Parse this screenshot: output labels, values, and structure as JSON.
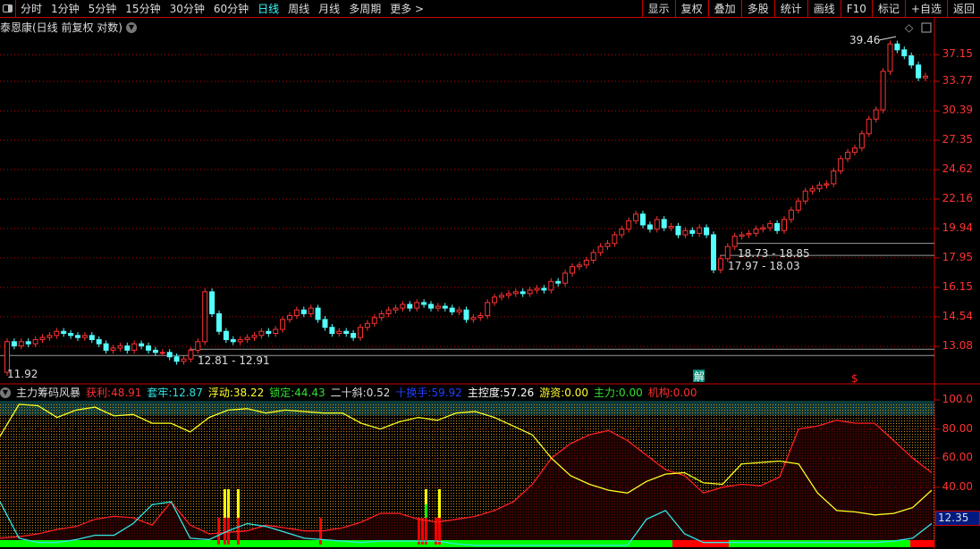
{
  "toolbar": {
    "periods": [
      "分时",
      "1分钟",
      "5分钟",
      "15分钟",
      "30分钟",
      "60分钟",
      "日线",
      "周线",
      "月线",
      "多周期",
      "更多 >"
    ],
    "active": "日线",
    "right_buttons": [
      "显示",
      "复权",
      "叠加",
      "多股",
      "统计",
      "画线",
      "F10",
      "标记",
      "+自选",
      "返回"
    ]
  },
  "main_title": "泰恩康(日线 前复权 对数)",
  "price_axis": [
    "37.15",
    "33.77",
    "30.39",
    "27.35",
    "24.62",
    "22.16",
    "19.94",
    "17.95",
    "16.15",
    "14.54",
    "13.08"
  ],
  "annotations": {
    "high": "39.46",
    "low": "11.92",
    "range1": "12.81 - 12.91",
    "range2": "18.73 - 18.85",
    "range3": "17.97 - 18.03",
    "jie": "解",
    "dollar": "$"
  },
  "indicator": {
    "name": "主力筹码风暴",
    "fields": [
      {
        "label": "获利:",
        "value": "48.91",
        "color": "#ff3030"
      },
      {
        "label": "套牢:",
        "value": "12.87",
        "color": "#30e0e0"
      },
      {
        "label": "浮动:",
        "value": "38.22",
        "color": "#ffff30"
      },
      {
        "label": "锁定:",
        "value": "44.43",
        "color": "#30e030"
      },
      {
        "label": "二十斜:",
        "value": "0.52",
        "color": "#dddddd"
      },
      {
        "label": "十换手:",
        "value": "59.92",
        "color": "#2040ff"
      },
      {
        "label": "主控度:",
        "value": "57.26",
        "color": "#ffffff"
      },
      {
        "label": "游资:",
        "value": "0.00",
        "color": "#ffff30"
      },
      {
        "label": "主力:",
        "value": "0.00",
        "color": "#30e030"
      },
      {
        "label": "机构:",
        "value": "0.00",
        "color": "#ff3030"
      }
    ],
    "axis": [
      "100.0",
      "80.00",
      "60.00",
      "40.00"
    ],
    "current": "12.35"
  },
  "chart_data": {
    "type": "candlestick",
    "scale": "log",
    "first_open": 11.92,
    "closes": [
      13.3,
      13.1,
      13.3,
      13.2,
      13.4,
      13.5,
      13.6,
      13.8,
      13.7,
      13.6,
      13.5,
      13.6,
      13.4,
      13.2,
      12.9,
      13.0,
      13.1,
      12.9,
      13.2,
      13.1,
      12.9,
      12.8,
      12.8,
      12.6,
      12.4,
      12.5,
      12.9,
      13.3,
      15.9,
      14.7,
      13.8,
      13.4,
      13.3,
      13.4,
      13.5,
      13.6,
      13.8,
      13.7,
      13.9,
      14.4,
      14.6,
      14.9,
      14.7,
      15.0,
      14.4,
      14.0,
      13.7,
      13.8,
      13.7,
      13.5,
      14.0,
      14.2,
      14.5,
      14.7,
      14.9,
      15.0,
      15.2,
      15.0,
      15.3,
      15.2,
      15.0,
      15.1,
      15.0,
      14.8,
      14.9,
      14.4,
      14.5,
      14.6,
      15.3,
      15.6,
      15.7,
      15.8,
      15.9,
      15.8,
      16.0,
      16.1,
      16.0,
      16.5,
      16.4,
      17.0,
      17.4,
      17.5,
      17.8,
      18.3,
      18.7,
      18.9,
      19.5,
      19.9,
      20.5,
      21.0,
      20.2,
      19.9,
      20.6,
      20.0,
      20.1,
      19.5,
      19.8,
      19.6,
      20.0,
      19.5,
      17.2,
      17.9,
      18.7,
      19.4,
      19.5,
      19.6,
      19.9,
      20.0,
      20.3,
      19.8,
      20.6,
      21.3,
      22.0,
      22.8,
      23.0,
      23.3,
      23.4,
      24.5,
      25.6,
      26.2,
      26.6,
      28.0,
      29.5,
      30.5,
      35.0,
      38.6,
      37.8,
      37.0,
      35.8,
      34.2,
      34.4
    ],
    "indicator_series": {
      "yellow": [
        75,
        97,
        96,
        88,
        93,
        95,
        89,
        90,
        84,
        84,
        78,
        88,
        93,
        94,
        91,
        93,
        92,
        91,
        91,
        84,
        80,
        85,
        88,
        86,
        91,
        92,
        88,
        82,
        76,
        60,
        48,
        42,
        38,
        36,
        44,
        49,
        50,
        43,
        42,
        56,
        57,
        58,
        56,
        36,
        24,
        23,
        21,
        22,
        26,
        38
      ],
      "red": [
        5,
        6,
        8,
        11,
        13,
        18,
        20,
        19,
        14,
        30,
        14,
        8,
        9,
        10,
        14,
        12,
        10,
        10,
        12,
        16,
        22,
        22,
        18,
        16,
        18,
        20,
        24,
        30,
        42,
        60,
        70,
        76,
        79,
        72,
        62,
        52,
        48,
        36,
        40,
        42,
        41,
        47,
        80,
        82,
        86,
        84,
        84,
        72,
        60,
        50
      ],
      "cyan": [
        30,
        5,
        2,
        2,
        4,
        7,
        7,
        15,
        28,
        30,
        5,
        4,
        10,
        15,
        13,
        9,
        5,
        4,
        3,
        2,
        3,
        3,
        3,
        3,
        1,
        0,
        0,
        0,
        0,
        0,
        0,
        0,
        0,
        0,
        18,
        24,
        8,
        2,
        2,
        2,
        2,
        2,
        2,
        2,
        2,
        2,
        2,
        3,
        5,
        15
      ]
    },
    "ylim_indicator": [
      0,
      100
    ]
  }
}
